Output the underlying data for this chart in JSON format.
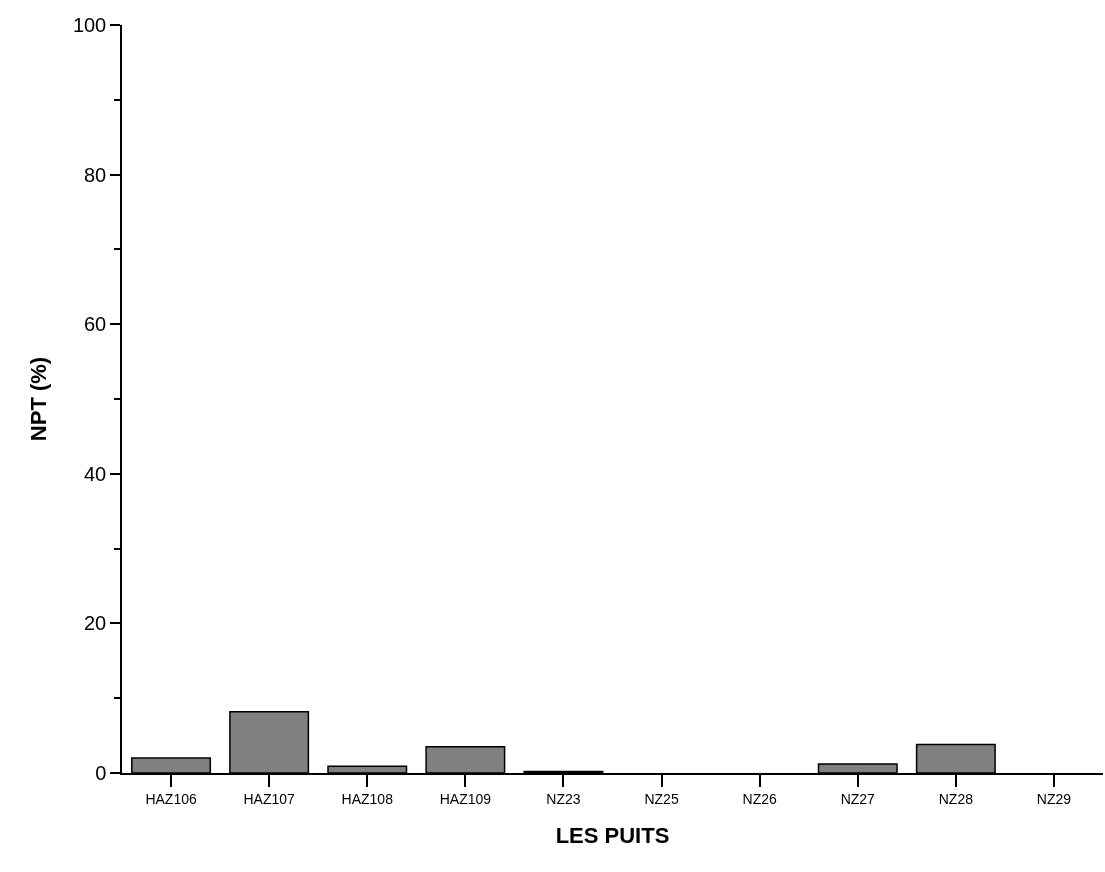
{
  "chart_data": {
    "type": "bar",
    "xlabel": "LES PUITS",
    "ylabel": "NPT (%)",
    "categories": [
      "HAZ106",
      "HAZ107",
      "HAZ108",
      "HAZ109",
      "NZ23",
      "NZ25",
      "NZ26",
      "NZ27",
      "NZ28",
      "NZ29"
    ],
    "values": [
      2.0,
      8.2,
      0.9,
      3.5,
      0.2,
      0,
      0,
      1.2,
      3.8,
      0
    ],
    "color": "#808080",
    "ylim": [
      0,
      100
    ],
    "yticks": [
      0,
      20,
      40,
      60,
      80,
      100
    ],
    "grid": false
  }
}
